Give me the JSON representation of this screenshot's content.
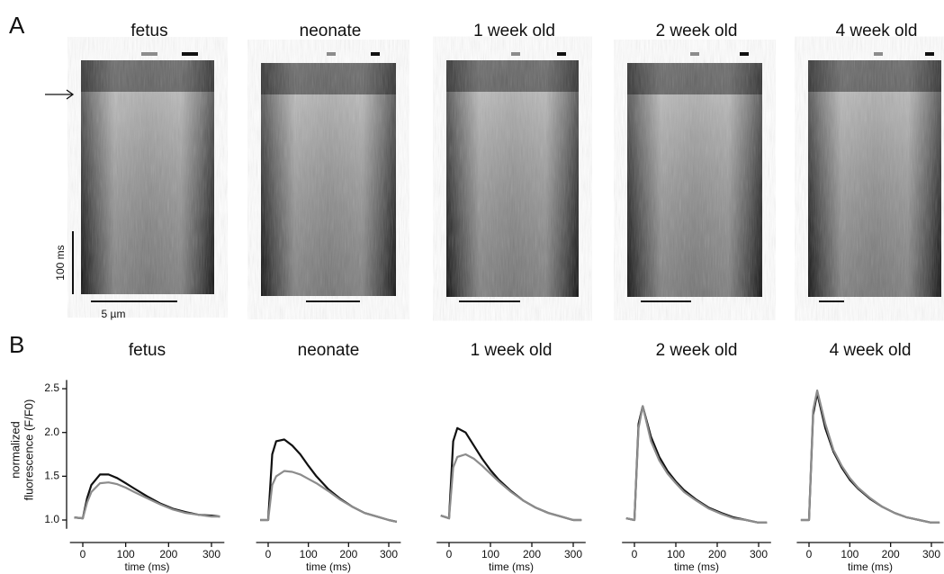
{
  "panel_labels": [
    "A",
    "B"
  ],
  "images": {
    "titles": [
      "fetus",
      "neonate",
      "1 week old",
      "2 week old",
      "4 week old"
    ],
    "time_scale_label": "100 ms",
    "space_scale_label": "5 µm"
  },
  "chart_data": [
    {
      "type": "line",
      "title": "fetus",
      "xlabel": "time (ms)",
      "ylabel": [
        "normalized",
        "fluorescence (F/F0)"
      ],
      "x": [
        -20,
        0,
        10,
        20,
        40,
        60,
        80,
        100,
        120,
        150,
        180,
        210,
        240,
        270,
        300,
        320
      ],
      "series": [
        {
          "color": "#111111",
          "values": [
            1.03,
            1.02,
            1.25,
            1.4,
            1.52,
            1.52,
            1.48,
            1.42,
            1.36,
            1.27,
            1.19,
            1.13,
            1.09,
            1.06,
            1.05,
            1.04
          ]
        },
        {
          "color": "#8c8c8c",
          "values": [
            1.03,
            1.02,
            1.2,
            1.32,
            1.42,
            1.43,
            1.41,
            1.37,
            1.32,
            1.25,
            1.18,
            1.12,
            1.08,
            1.06,
            1.04,
            1.04
          ]
        }
      ],
      "xlim": [
        -30,
        330
      ],
      "xticks": [
        0,
        100,
        200,
        300
      ],
      "ylim": [
        0.9,
        2.6
      ],
      "yticks": [
        {
          "value": 1,
          "label": "1.0"
        },
        1.5,
        {
          "value": 2,
          "label": "2.0"
        },
        2.5
      ]
    },
    {
      "type": "line",
      "title": "neonate",
      "xlabel": "time (ms)",
      "x": [
        -20,
        0,
        10,
        20,
        40,
        60,
        80,
        100,
        120,
        150,
        180,
        210,
        240,
        270,
        300,
        320
      ],
      "series": [
        {
          "color": "#111111",
          "values": [
            1.0,
            1.0,
            1.75,
            1.9,
            1.92,
            1.85,
            1.75,
            1.62,
            1.5,
            1.35,
            1.24,
            1.15,
            1.08,
            1.04,
            1.0,
            0.98
          ]
        },
        {
          "color": "#8c8c8c",
          "values": [
            1.0,
            1.0,
            1.4,
            1.5,
            1.56,
            1.55,
            1.52,
            1.47,
            1.42,
            1.33,
            1.23,
            1.15,
            1.08,
            1.04,
            1.0,
            0.98
          ]
        }
      ],
      "xlim": [
        -30,
        330
      ],
      "xticks": [
        0,
        100,
        200,
        300
      ],
      "ylim": [
        0.9,
        2.6
      ]
    },
    {
      "type": "line",
      "title": "1 week old",
      "xlabel": "time (ms)",
      "x": [
        -20,
        0,
        10,
        20,
        40,
        60,
        80,
        100,
        120,
        150,
        180,
        210,
        240,
        270,
        300,
        320
      ],
      "series": [
        {
          "color": "#111111",
          "values": [
            1.05,
            1.02,
            1.9,
            2.05,
            2.0,
            1.85,
            1.7,
            1.57,
            1.46,
            1.33,
            1.22,
            1.14,
            1.08,
            1.04,
            1.0,
            1.0
          ]
        },
        {
          "color": "#8c8c8c",
          "values": [
            1.05,
            1.02,
            1.6,
            1.72,
            1.75,
            1.7,
            1.62,
            1.53,
            1.44,
            1.32,
            1.22,
            1.14,
            1.08,
            1.04,
            1.0,
            1.0
          ]
        }
      ],
      "xlim": [
        -30,
        330
      ],
      "xticks": [
        0,
        100,
        200,
        300
      ],
      "ylim": [
        0.9,
        2.6
      ]
    },
    {
      "type": "line",
      "title": "2 week old",
      "xlabel": "time (ms)",
      "x": [
        -20,
        0,
        10,
        20,
        40,
        60,
        80,
        100,
        120,
        150,
        180,
        210,
        240,
        270,
        300,
        320
      ],
      "series": [
        {
          "color": "#111111",
          "values": [
            1.02,
            1.0,
            2.1,
            2.3,
            1.95,
            1.72,
            1.56,
            1.44,
            1.34,
            1.23,
            1.14,
            1.08,
            1.03,
            1.0,
            0.97,
            0.97
          ]
        },
        {
          "color": "#8c8c8c",
          "values": [
            1.02,
            1.0,
            2.05,
            2.3,
            1.9,
            1.68,
            1.53,
            1.42,
            1.32,
            1.22,
            1.13,
            1.07,
            1.02,
            1.0,
            0.97,
            0.97
          ]
        }
      ],
      "xlim": [
        -30,
        330
      ],
      "xticks": [
        0,
        100,
        200,
        300
      ],
      "ylim": [
        0.9,
        2.6
      ]
    },
    {
      "type": "line",
      "title": "4 week old",
      "xlabel": "time (ms)",
      "x": [
        -20,
        0,
        10,
        20,
        40,
        60,
        80,
        100,
        120,
        150,
        180,
        210,
        240,
        270,
        300,
        320
      ],
      "series": [
        {
          "color": "#111111",
          "values": [
            1.0,
            1.0,
            2.2,
            2.45,
            2.05,
            1.78,
            1.6,
            1.46,
            1.36,
            1.24,
            1.15,
            1.08,
            1.03,
            1.0,
            0.97,
            0.97
          ]
        },
        {
          "color": "#8c8c8c",
          "values": [
            1.0,
            1.0,
            2.25,
            2.48,
            2.1,
            1.8,
            1.62,
            1.48,
            1.37,
            1.25,
            1.15,
            1.08,
            1.03,
            1.0,
            0.97,
            0.97
          ]
        }
      ],
      "xlim": [
        -30,
        330
      ],
      "xticks": [
        0,
        100,
        200,
        300
      ],
      "ylim": [
        0.9,
        2.6
      ]
    }
  ]
}
